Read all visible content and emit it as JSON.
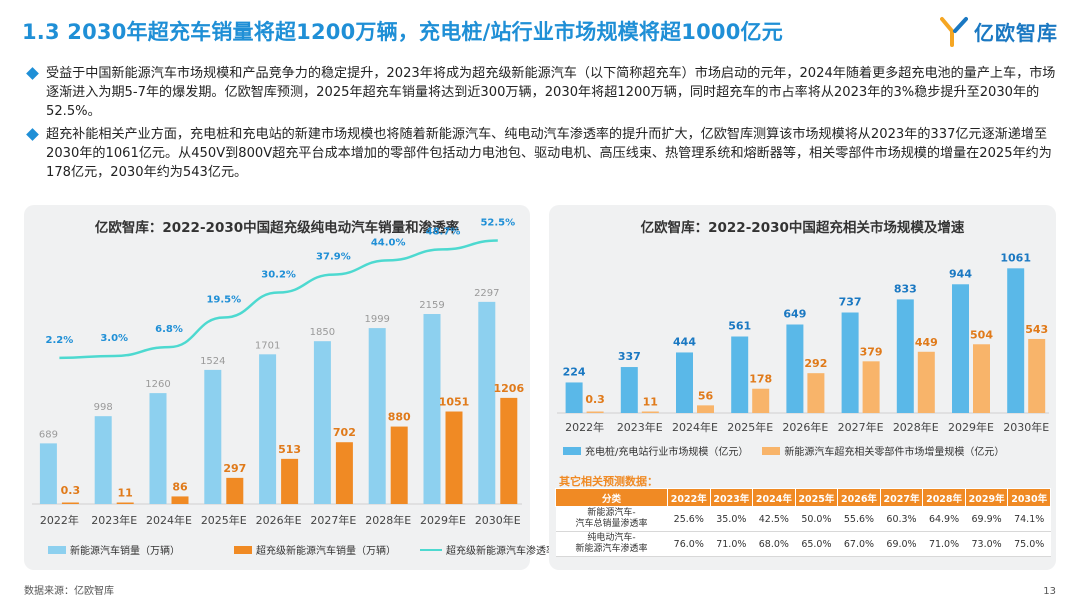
{
  "page": {
    "title": "1.3 2030年超充车销量将超1200万辆，充电桩/站行业市场规模将超1000亿元",
    "brand": "亿欧智库",
    "bullets": [
      "受益于中国新能源汽车市场规模和产品竞争力的稳定提升，2023年将成为超充级新能源汽车（以下简称超充车）市场启动的元年，2024年随着更多超充电池的量产上车，市场逐渐进入为期5-7年的爆发期。亿欧智库预测，2025年超充车销量将达到近300万辆，2030年将超1200万辆，同时超充车的市占率将从2023年的3%稳步提升至2030年的52.5%。",
      "超充补能相关产业方面，充电桩和充电站的新建市场规模也将随着新能源汽车、纯电动汽车渗透率的提升而扩大，亿欧智库测算该市场规模将从2023年的337亿元逐渐递增至2030年的1061亿元。从450V到800V超充平台成本增加的零部件包括动力电池包、驱动电机、高压线束、热管理系统和熔断器等，相关零部件市场规模的增量在2025年约为178亿元，2030年约为543亿元。"
    ],
    "source": "数据来源：亿欧智库",
    "page_number": "13"
  },
  "colors": {
    "blue": "#1f8fd6",
    "light_blue": "#8dd0ef",
    "sky_blue": "#5ab8e8",
    "orange": "#f08a24",
    "line": "#4dd9d0",
    "panel": "#f0f1f2"
  },
  "chart_data": [
    {
      "type": "bar",
      "title": "亿欧智库：2022-2030中国超充级纯电动汽车销量和渗透率",
      "categories": [
        "2022年",
        "2023年E",
        "2024年E",
        "2025年E",
        "2026年E",
        "2027年E",
        "2028年E",
        "2029年E",
        "2030年E"
      ],
      "series": [
        {
          "name": "新能源汽车销量（万辆）",
          "kind": "bar",
          "values": [
            689,
            998,
            1260,
            1524,
            1701,
            1850,
            1999,
            2159,
            2297
          ]
        },
        {
          "name": "超充级新能源汽车销量（万辆）",
          "kind": "bar",
          "values": [
            0.3,
            11,
            86,
            297,
            513,
            702,
            880,
            1051,
            1206
          ]
        },
        {
          "name": "超充级新能源汽车渗透率",
          "kind": "line",
          "values": [
            2.2,
            3.0,
            6.8,
            19.5,
            30.2,
            37.9,
            44.0,
            48.7,
            52.5
          ],
          "labels": [
            "2.2%",
            "3.0%",
            "6.8%",
            "19.5%",
            "30.2%",
            "37.9%",
            "44.0%",
            "48.7%",
            "52.5%"
          ]
        }
      ],
      "ylim": [
        0,
        2500
      ],
      "y2lim": [
        0,
        60
      ]
    },
    {
      "type": "bar",
      "title": "亿欧智库：2022-2030中国超充相关市场规模及增速",
      "categories": [
        "2022年",
        "2023年E",
        "2024年E",
        "2025年E",
        "2026年E",
        "2027年E",
        "2028年E",
        "2029年E",
        "2030年E"
      ],
      "series": [
        {
          "name": "充电桩/充电站行业市场规模（亿元）",
          "values": [
            224,
            337,
            444,
            561,
            649,
            737,
            833,
            944,
            1061
          ]
        },
        {
          "name": "新能源汽车超充相关零部件市场增量规模（亿元）",
          "values": [
            0.3,
            11,
            56,
            178,
            292,
            379,
            449,
            504,
            543
          ]
        }
      ],
      "ylim": [
        0,
        1100
      ]
    }
  ],
  "table": {
    "label": "其它相关预测数据：",
    "headers": [
      "分类",
      "2022年",
      "2023年",
      "2024年",
      "2025年",
      "2026年",
      "2027年",
      "2028年",
      "2029年",
      "2030年"
    ],
    "rows": [
      {
        "name_line1": "新能源汽车-",
        "name_line2": "汽车总销量渗透率",
        "values": [
          "25.6%",
          "35.0%",
          "42.5%",
          "50.0%",
          "55.6%",
          "60.3%",
          "64.9%",
          "69.9%",
          "74.1%"
        ]
      },
      {
        "name_line1": "纯电动汽车-",
        "name_line2": "新能源汽车渗透率",
        "values": [
          "76.0%",
          "71.0%",
          "68.0%",
          "65.0%",
          "67.0%",
          "69.0%",
          "71.0%",
          "73.0%",
          "75.0%"
        ]
      }
    ]
  }
}
